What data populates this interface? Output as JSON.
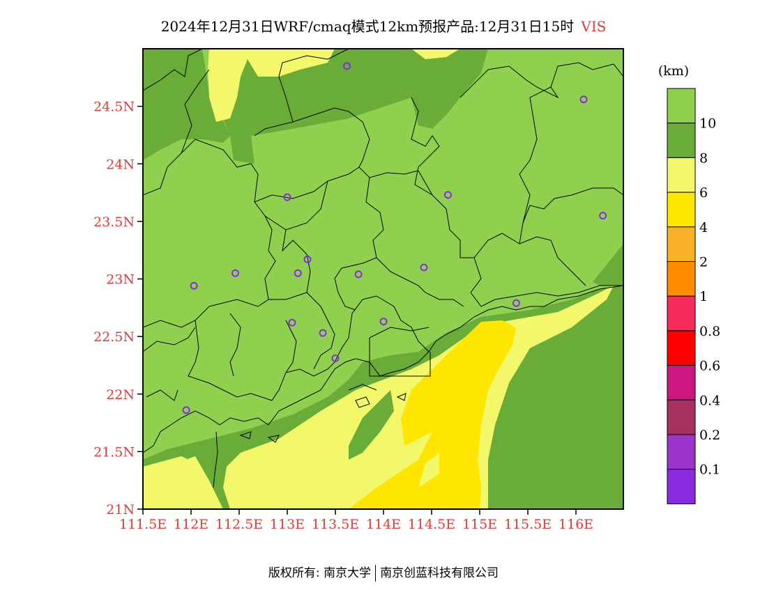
{
  "header": {
    "title": "2024年12月31日WRF/cmaq模式12km预报产品:12月31日15时",
    "variable": "VIS"
  },
  "map": {
    "lon_range": [
      111.5,
      116.3
    ],
    "lat_range": [
      21.0,
      25.0
    ],
    "lon_ticks": [
      {
        "value": 111.5,
        "label": "111.5E"
      },
      {
        "value": 112.0,
        "label": "112E"
      },
      {
        "value": 112.5,
        "label": "112.5E"
      },
      {
        "value": 113.0,
        "label": "113E"
      },
      {
        "value": 113.5,
        "label": "113.5E"
      },
      {
        "value": 114.0,
        "label": "114E"
      },
      {
        "value": 114.5,
        "label": "114.5E"
      },
      {
        "value": 115.0,
        "label": "115E"
      },
      {
        "value": 115.5,
        "label": "115.5E"
      },
      {
        "value": 116.0,
        "label": "116E"
      }
    ],
    "lat_ticks": [
      {
        "value": 21.0,
        "label": "21N"
      },
      {
        "value": 21.5,
        "label": "21.5N"
      },
      {
        "value": 22.0,
        "label": "22N"
      },
      {
        "value": 22.5,
        "label": "22.5N"
      },
      {
        "value": 23.0,
        "label": "23N"
      },
      {
        "value": 23.5,
        "label": "23.5N"
      },
      {
        "value": 24.0,
        "label": "24N"
      },
      {
        "value": 24.5,
        "label": "24.5N"
      }
    ],
    "station_color": "#8a2be2",
    "stations": [
      {
        "lon": 113.62,
        "lat": 24.85
      },
      {
        "lon": 116.08,
        "lat": 24.56
      },
      {
        "lon": 113.0,
        "lat": 23.71
      },
      {
        "lon": 114.67,
        "lat": 23.73
      },
      {
        "lon": 116.28,
        "lat": 23.55
      },
      {
        "lon": 113.21,
        "lat": 23.17
      },
      {
        "lon": 112.46,
        "lat": 23.05
      },
      {
        "lon": 113.11,
        "lat": 23.05
      },
      {
        "lon": 113.74,
        "lat": 23.04
      },
      {
        "lon": 114.42,
        "lat": 23.1
      },
      {
        "lon": 112.03,
        "lat": 22.94
      },
      {
        "lon": 115.38,
        "lat": 22.79
      },
      {
        "lon": 113.05,
        "lat": 22.62
      },
      {
        "lon": 113.37,
        "lat": 22.53
      },
      {
        "lon": 114.0,
        "lat": 22.63
      },
      {
        "lon": 113.5,
        "lat": 22.31
      },
      {
        "lon": 111.95,
        "lat": 21.86
      }
    ]
  },
  "colorbar": {
    "unit": "(km)",
    "bins": [
      {
        "color": "#8fd14f",
        "label": "10"
      },
      {
        "color": "#6aac38",
        "label": "8"
      },
      {
        "color": "#f3f76a",
        "label": "6"
      },
      {
        "color": "#ffe600",
        "label": "4"
      },
      {
        "color": "#f9b127",
        "label": "2"
      },
      {
        "color": "#ff8c00",
        "label": "1"
      },
      {
        "color": "#f52c5b",
        "label": "0.8"
      },
      {
        "color": "#ff0000",
        "label": "0.6"
      },
      {
        "color": "#cc1680",
        "label": "0.4"
      },
      {
        "color": "#a8305e",
        "label": "0.2"
      },
      {
        "color": "#9b35c9",
        "label": "0.1"
      },
      {
        "color": "#8a2be2",
        "label": ""
      }
    ]
  },
  "footer": {
    "left": "版权所有: 南京大学",
    "right": "南京创蓝科技有限公司"
  }
}
